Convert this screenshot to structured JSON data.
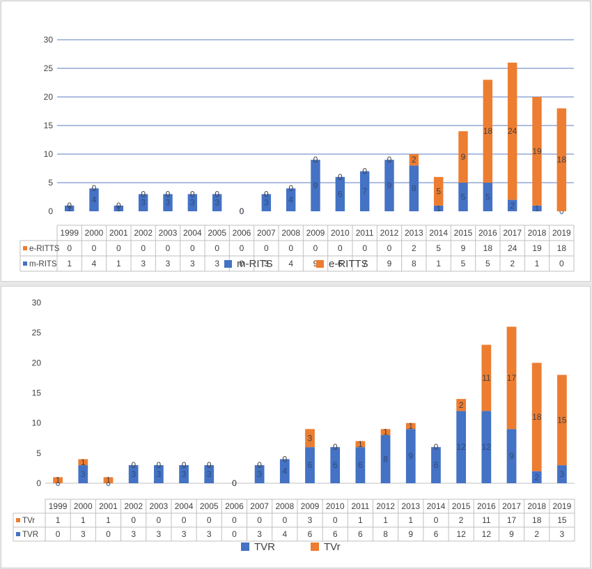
{
  "chart_data": [
    {
      "type": "bar",
      "stacked": true,
      "title": "",
      "xlabel": "",
      "ylabel": "",
      "ylim": [
        0,
        30
      ],
      "yticks": [
        0,
        5,
        10,
        15,
        20,
        25,
        30
      ],
      "grid": true,
      "legend": "bottom",
      "data_table": true,
      "categories": [
        "1999",
        "2000",
        "2001",
        "2002",
        "2003",
        "2004",
        "2005",
        "2006",
        "2007",
        "2008",
        "2009",
        "2010",
        "2011",
        "2012",
        "2013",
        "2014",
        "2015",
        "2016",
        "2017",
        "2018",
        "2019"
      ],
      "series": [
        {
          "name": "m-RITS",
          "color": "#4472C4",
          "values": [
            1,
            4,
            1,
            3,
            3,
            3,
            3,
            0,
            3,
            4,
            9,
            6,
            7,
            9,
            8,
            1,
            5,
            5,
            2,
            1,
            0
          ]
        },
        {
          "name": "e-RITTS",
          "color": "#ED7D31",
          "values": [
            0,
            0,
            0,
            0,
            0,
            0,
            0,
            0,
            0,
            0,
            0,
            0,
            0,
            0,
            2,
            5,
            9,
            18,
            24,
            19,
            18
          ]
        }
      ]
    },
    {
      "type": "bar",
      "stacked": true,
      "title": "",
      "xlabel": "",
      "ylabel": "",
      "ylim": [
        0,
        30
      ],
      "yticks": [
        0,
        5,
        10,
        15,
        20,
        25,
        30
      ],
      "grid": false,
      "legend": "bottom",
      "data_table": true,
      "categories": [
        "1999",
        "2000",
        "2001",
        "2002",
        "2003",
        "2004",
        "2005",
        "2006",
        "2007",
        "2008",
        "2009",
        "2010",
        "2011",
        "2012",
        "2013",
        "2014",
        "2015",
        "2016",
        "2017",
        "2018",
        "2019"
      ],
      "series": [
        {
          "name": "TVR",
          "color": "#4472C4",
          "values": [
            0,
            3,
            0,
            3,
            3,
            3,
            3,
            0,
            3,
            4,
            6,
            6,
            6,
            8,
            9,
            6,
            12,
            12,
            9,
            2,
            3
          ]
        },
        {
          "name": "TVr",
          "color": "#ED7D31",
          "values": [
            1,
            1,
            1,
            0,
            0,
            0,
            0,
            0,
            0,
            0,
            3,
            0,
            1,
            1,
            1,
            0,
            2,
            11,
            17,
            18,
            15
          ]
        }
      ]
    }
  ]
}
